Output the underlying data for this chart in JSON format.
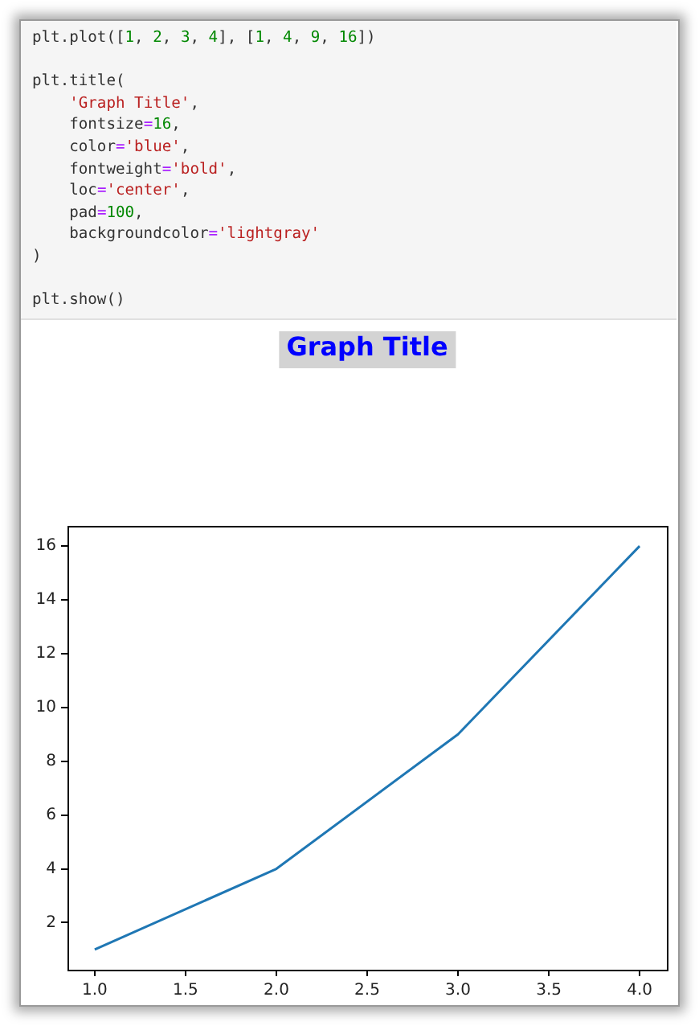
{
  "chart_data": {
    "type": "line",
    "title": "Graph Title",
    "annotations": [
      "plt.plot([1, 2, 3, 4], [1, 4, 9, 16])\n\nplt.title(\n    'Graph Title',\n    fontsize=16,\n    color='blue',\n    fontweight='bold',\n    loc='center',\n    pad=100,\n    backgroundcolor='lightgray'\n)\n\nplt.show()"
    ],
    "x": [
      1,
      2,
      3,
      4
    ],
    "series": [
      {
        "color": "#1f77b4",
        "values": [
          1,
          4,
          9,
          16
        ]
      }
    ],
    "xlim": [
      0.85,
      4.15
    ],
    "ylim": [
      0.25,
      16.75
    ],
    "xticks": [
      {
        "value": 1,
        "label": "1.0"
      },
      {
        "value": 1.5,
        "label": "1.5"
      },
      {
        "value": 2,
        "label": "2.0"
      },
      {
        "value": 2.5,
        "label": "2.5"
      },
      {
        "value": 3,
        "label": "3.0"
      },
      {
        "value": 3.5,
        "label": "3.5"
      },
      {
        "value": 4,
        "label": "4.0"
      }
    ],
    "yticks": [
      2,
      4,
      6,
      8,
      10,
      12,
      14,
      16
    ],
    "grid": false,
    "legend": false,
    "marker": "none",
    "line_style": "solid"
  }
}
